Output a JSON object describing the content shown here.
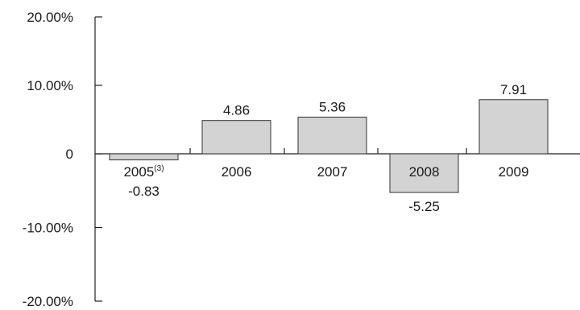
{
  "chart_data": {
    "type": "bar",
    "categories": [
      "2005",
      "2006",
      "2007",
      "2008",
      "2009"
    ],
    "category_superscripts": [
      "(3)",
      "",
      "",
      "",
      ""
    ],
    "values": [
      -0.83,
      4.86,
      5.36,
      -5.25,
      7.91
    ],
    "value_labels": [
      "-0.83",
      "4.86",
      "5.36",
      "-5.25",
      "7.91"
    ],
    "y_ticks": [
      20,
      10,
      0,
      -10,
      -20
    ],
    "y_tick_labels": [
      "20.00%",
      "10.00%",
      "0",
      "-10.00%",
      "-20.00%"
    ],
    "ylim": [
      -20,
      20
    ],
    "title": "",
    "xlabel": "",
    "ylabel": "",
    "grid": false,
    "bar_color": "#d3d3d3",
    "bar_edge_color": "#333333",
    "axis_color": "#222222"
  }
}
